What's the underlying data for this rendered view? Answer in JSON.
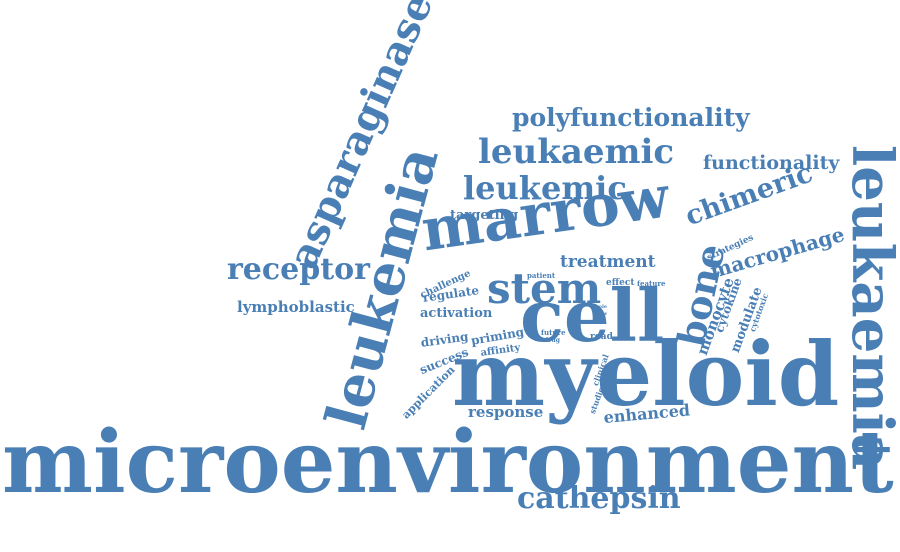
{
  "theme": {
    "word_color": "#4a7fb5",
    "background": "#ffffff"
  },
  "words": [
    "microenvironment",
    "myeloid",
    "leukaemia",
    "cell",
    "leukemia",
    "marrow",
    "asparaginase",
    "stem",
    "bone",
    "leukaemic",
    "leukemic",
    "chimeric",
    "cathepsin",
    "receptor",
    "polyfunctionality",
    "functionality",
    "macrophage",
    "treatment",
    "enhanced",
    "response",
    "lymphoblastic",
    "targeting",
    "activation",
    "regulate",
    "driving",
    "priming",
    "success",
    "affinity",
    "application",
    "monocyte",
    "cytokine",
    "modulate",
    "challenge",
    "strategies",
    "patient",
    "effect",
    "feature",
    "cytotoxic",
    "future",
    "drug",
    "road",
    "clinical",
    "studies",
    "role",
    "new"
  ]
}
